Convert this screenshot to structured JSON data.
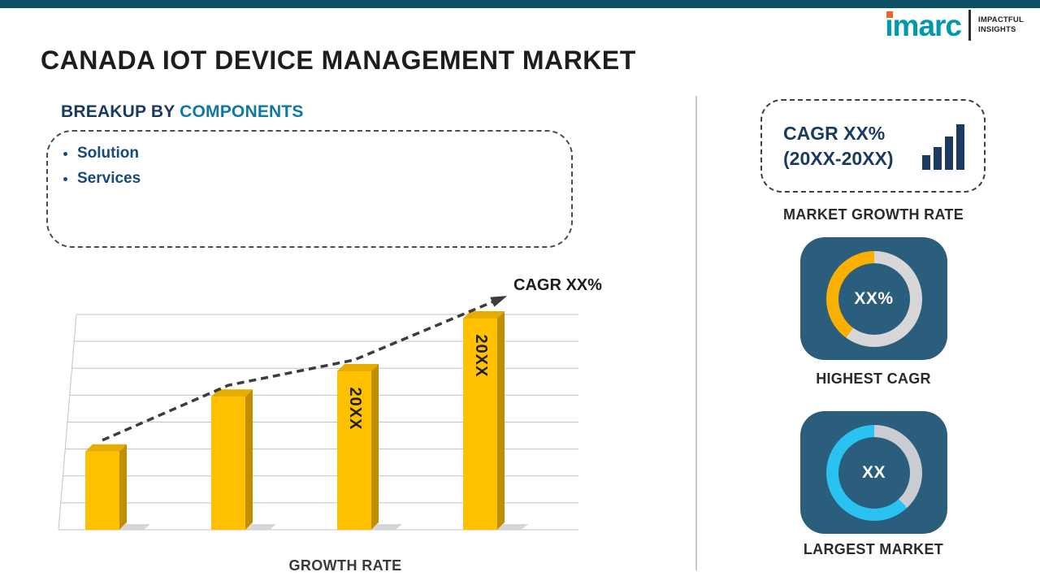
{
  "page": {
    "title": "CANADA IOT DEVICE MANAGEMENT MARKET"
  },
  "logo": {
    "brand": "imarc",
    "tagline_line1": "IMPACTFUL",
    "tagline_line2": "INSIGHTS"
  },
  "breakup": {
    "heading_prefix": "BREAKUP BY ",
    "heading_highlight": "COMPONENTS",
    "items": [
      "Solution",
      "Services"
    ]
  },
  "chart_data": {
    "type": "bar",
    "title": "",
    "values": [
      37,
      63,
      75,
      100
    ],
    "bar_labels": [
      "",
      "",
      "20XX",
      "20XX"
    ],
    "trend_label": "CAGR XX%",
    "xlabel": "GROWTH RATE",
    "ylabel": "",
    "grid": true,
    "legend": false,
    "bar_color": "#FFC000",
    "bar_top_color": "#E8AC00",
    "bar_side_color": "#BF8F00",
    "trend_color": "#3c3c3c"
  },
  "sidebar": {
    "growth_box": {
      "line1": "CAGR XX%",
      "line2": "(20XX-20XX)",
      "caption": "MARKET GROWTH RATE"
    },
    "highest_cagr": {
      "value": "XX%",
      "caption": "HIGHEST CAGR",
      "segments": [
        {
          "color": "#d7d7d7",
          "to": 60
        },
        {
          "color": "#f9b000",
          "to": 100
        }
      ]
    },
    "largest_market": {
      "value": "XX",
      "caption": "LARGEST MARKET",
      "segments": [
        {
          "color": "#c9cdd2",
          "to": 38
        },
        {
          "color": "#29c2f1",
          "to": 100
        }
      ]
    }
  },
  "colors": {
    "top_bar": "#0d4f63",
    "navy": "#1b3a5f",
    "highlight_blue": "#1178a5",
    "bullet_blue": "#16497c",
    "tile_bg": "#2b5d7c",
    "logo_teal": "#0099ab",
    "logo_orange": "#f26522",
    "divider": "#c9c9c9",
    "caption_dark": "#2a2a2a"
  }
}
